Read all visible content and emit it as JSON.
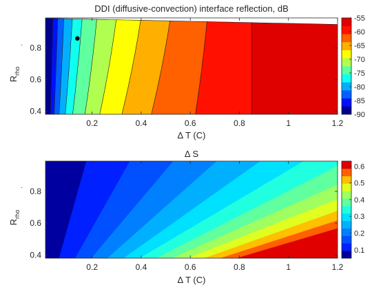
{
  "chart_data": [
    {
      "type": "contour",
      "title": "DDI (diffusive-convection) interface reflection, dB",
      "xlabel": "Δ T (C)",
      "ylabel_main": "R",
      "ylabel_sub": "rho",
      "ylabel_suffix": "·",
      "xlim": [
        0.01,
        1.2
      ],
      "ylim": [
        0.38,
        0.99
      ],
      "xticks": [
        0.2,
        0.4,
        0.6,
        0.8,
        1.0,
        1.2
      ],
      "xtick_labels": [
        "0.2",
        "0.4",
        "0.6",
        "0.8",
        "1",
        "1.2"
      ],
      "yticks": [
        0.4,
        0.6,
        0.8
      ],
      "ytick_labels": [
        "0.4",
        "0.6",
        "0.8"
      ],
      "colorbar": {
        "range": [
          -90,
          -55
        ],
        "ticks": [
          -90,
          -85,
          -80,
          -75,
          -70,
          -65,
          -60,
          -55
        ],
        "tick_labels": [
          "-90",
          "-85",
          "-80",
          "-75",
          "-70",
          "-65",
          "-60",
          "-55"
        ]
      },
      "contour_boundaries_at_top": [
        0.04,
        0.06,
        0.085,
        0.12,
        0.16,
        0.22,
        0.3,
        0.4,
        0.52,
        0.67,
        0.85
      ],
      "contour_boundaries_at_bottom": [
        0.03,
        0.045,
        0.065,
        0.09,
        0.12,
        0.17,
        0.23,
        0.32,
        0.44,
        0.62,
        0.85
      ],
      "band_colors": [
        "#00008f",
        "#0010ff",
        "#0060ff",
        "#00b0ff",
        "#10ffef",
        "#60ff9f",
        "#b0ff50",
        "#ffff00",
        "#ffaf00",
        "#ff6000",
        "#ff1000",
        "#df0000"
      ],
      "marker": {
        "x": 0.14,
        "y": 0.86
      }
    },
    {
      "type": "contour",
      "title": "Δ S",
      "xlabel": "Δ T (C)",
      "ylabel_main": "R",
      "ylabel_sub": "rho",
      "ylabel_suffix": "·",
      "xlim": [
        0.01,
        1.2
      ],
      "ylim": [
        0.38,
        0.99
      ],
      "xticks": [
        0.2,
        0.4,
        0.6,
        0.8,
        1.0,
        1.2
      ],
      "xtick_labels": [
        "0.2",
        "0.4",
        "0.6",
        "0.8",
        "1",
        "1.2"
      ],
      "yticks": [
        0.4,
        0.6,
        0.8
      ],
      "ytick_labels": [
        "0.4",
        "0.6",
        "0.8"
      ],
      "colorbar": {
        "range": [
          0.05,
          0.63
        ],
        "ticks": [
          0.1,
          0.2,
          0.3,
          0.4,
          0.5,
          0.6
        ],
        "tick_labels": [
          "0.1",
          "0.2",
          "0.3",
          "0.4",
          "0.5",
          "0.6"
        ]
      },
      "contour_levels": [
        0.05,
        0.1,
        0.15,
        0.2,
        0.25,
        0.3,
        0.35,
        0.4,
        0.45,
        0.5,
        0.55,
        0.6
      ],
      "band_colors": [
        "#0000a0",
        "#0020ff",
        "#0050ff",
        "#0080ff",
        "#00b0ff",
        "#00e0ff",
        "#20ffdf",
        "#60ff9f",
        "#a0ff60",
        "#e0ff20",
        "#ffc000",
        "#ff6000",
        "#e00000"
      ]
    }
  ]
}
